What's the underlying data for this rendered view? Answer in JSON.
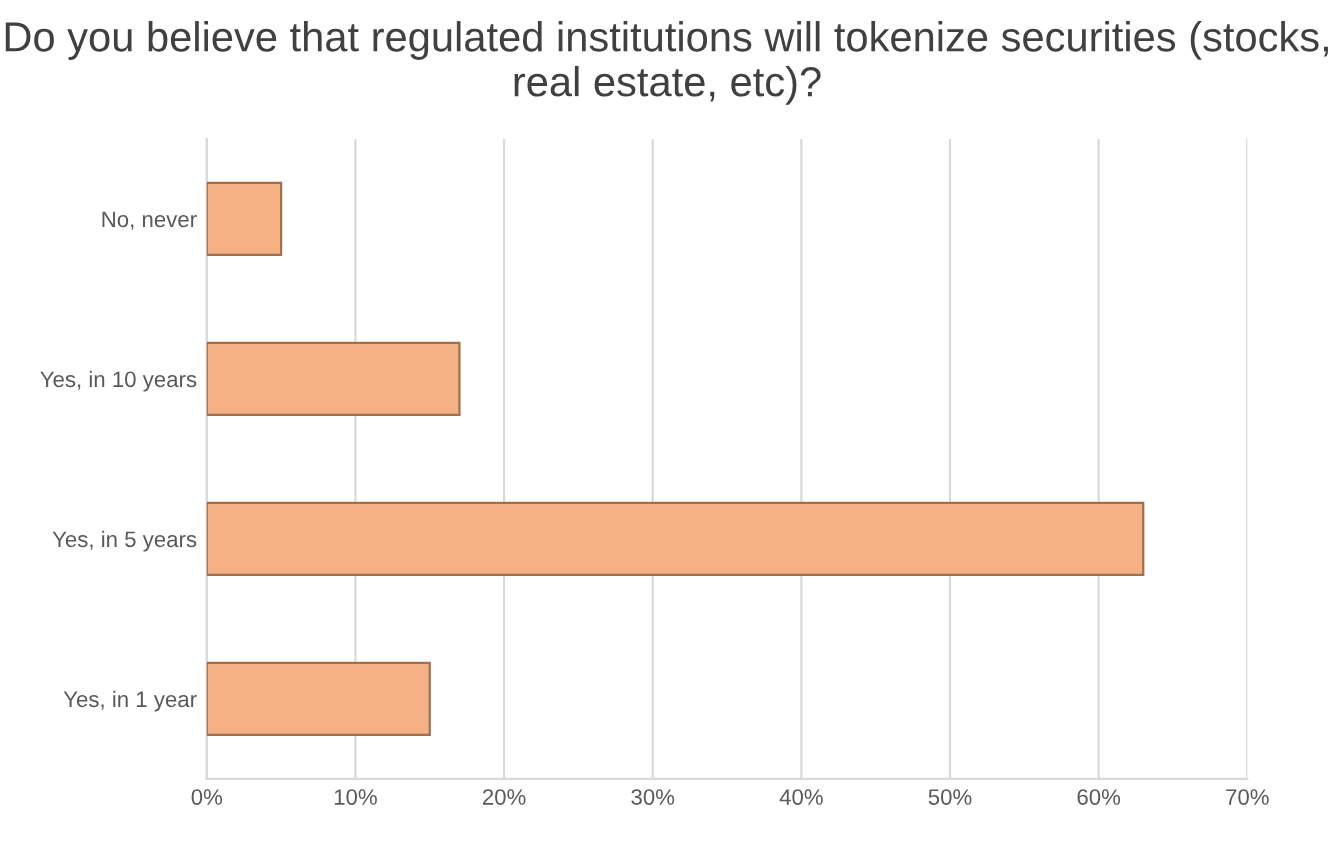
{
  "chart_data": {
    "type": "bar",
    "orientation": "horizontal",
    "title": "Do you believe that regulated institutions will tokenize securities (stocks, real estate, etc)?",
    "categories": [
      "No, never",
      "Yes, in 10 years",
      "Yes, in 5 years",
      "Yes, in 1 year"
    ],
    "values": [
      5,
      17,
      63,
      15
    ],
    "color": "#f4b183",
    "xlim": [
      0,
      70
    ],
    "xticks": [
      {
        "value": 0,
        "label": "0%"
      },
      {
        "value": 10,
        "label": "10%"
      },
      {
        "value": 20,
        "label": "20%"
      },
      {
        "value": 30,
        "label": "30%"
      },
      {
        "value": 40,
        "label": "40%"
      },
      {
        "value": 50,
        "label": "50%"
      },
      {
        "value": 60,
        "label": "60%"
      },
      {
        "value": 70,
        "label": "70%"
      }
    ],
    "grid": "x"
  }
}
